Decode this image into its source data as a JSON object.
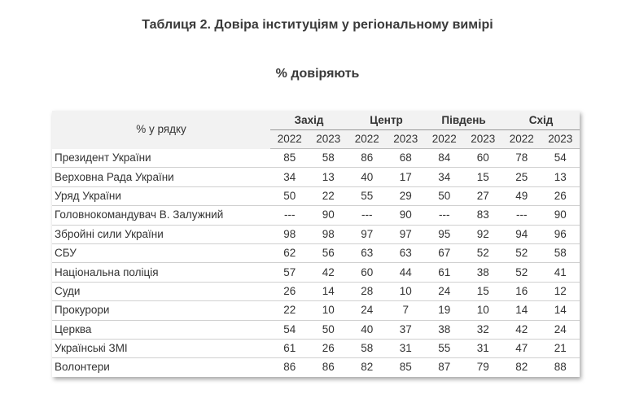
{
  "title": "Таблиця 2. Довіра інституціям у регіональному вимірі",
  "subtitle": "% довіряють",
  "table": {
    "row_header": "% у рядку",
    "regions": [
      "Захід",
      "Центр",
      "Південь",
      "Схід"
    ],
    "years": [
      "2022",
      "2023"
    ],
    "rows": [
      {
        "label": "Президент України",
        "values": [
          "85",
          "58",
          "86",
          "68",
          "84",
          "60",
          "78",
          "54"
        ]
      },
      {
        "label": "Верховна Рада України",
        "values": [
          "34",
          "13",
          "40",
          "17",
          "34",
          "15",
          "25",
          "13"
        ]
      },
      {
        "label": "Уряд України",
        "values": [
          "50",
          "22",
          "55",
          "29",
          "50",
          "27",
          "49",
          "26"
        ]
      },
      {
        "label": "Головнокомандувач В. Залужний",
        "values": [
          "---",
          "90",
          "---",
          "90",
          "---",
          "83",
          "---",
          "90"
        ]
      },
      {
        "label": "Збройні сили України",
        "values": [
          "98",
          "98",
          "97",
          "97",
          "95",
          "92",
          "94",
          "96"
        ]
      },
      {
        "label": "СБУ",
        "values": [
          "62",
          "56",
          "63",
          "63",
          "67",
          "52",
          "52",
          "58"
        ]
      },
      {
        "label": "Національна поліція",
        "values": [
          "57",
          "42",
          "60",
          "44",
          "61",
          "38",
          "52",
          "41"
        ]
      },
      {
        "label": "Суди",
        "values": [
          "26",
          "14",
          "28",
          "10",
          "24",
          "15",
          "16",
          "12"
        ]
      },
      {
        "label": "Прокурори",
        "values": [
          "22",
          "10",
          "24",
          "7",
          "19",
          "10",
          "14",
          "14"
        ]
      },
      {
        "label": "Церква",
        "values": [
          "54",
          "50",
          "40",
          "37",
          "38",
          "32",
          "42",
          "24"
        ]
      },
      {
        "label": "Українські ЗМІ",
        "values": [
          "61",
          "26",
          "58",
          "31",
          "55",
          "31",
          "47",
          "21"
        ]
      },
      {
        "label": "Волонтери",
        "values": [
          "86",
          "86",
          "82",
          "85",
          "87",
          "79",
          "82",
          "88"
        ]
      }
    ]
  }
}
